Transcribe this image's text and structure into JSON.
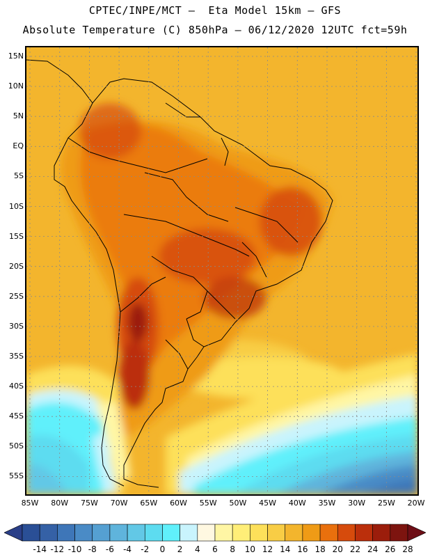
{
  "title_line1": "CPTEC/INPE/MCT –  Eta Model 15km – GFS",
  "title_line2": "Absolute Temperature (C) 850hPa – 06/12/2020 12UTC fct=59h",
  "lat_labels": [
    "15N",
    "10N",
    "5N",
    "EQ",
    "5S",
    "10S",
    "15S",
    "20S",
    "25S",
    "30S",
    "35S",
    "40S",
    "45S",
    "50S",
    "55S"
  ],
  "lon_labels": [
    "85W",
    "80W",
    "75W",
    "70W",
    "65W",
    "60W",
    "55W",
    "50W",
    "45W",
    "40W",
    "35W",
    "30W",
    "25W",
    "20W"
  ],
  "colorbar": {
    "labels": [
      "-14",
      "-12",
      "-10",
      "-8",
      "-6",
      "-4",
      "-2",
      "0",
      "2",
      "4",
      "6",
      "8",
      "10",
      "12",
      "14",
      "16",
      "18",
      "20",
      "22",
      "24",
      "26",
      "28"
    ],
    "colors": [
      "#2a4f96",
      "#3561a6",
      "#3e76b8",
      "#4a8bc6",
      "#55a0d2",
      "#5fb4dc",
      "#62c8e6",
      "#5ddcf0",
      "#60f0fb",
      "#c9f4fd",
      "#fff8e1",
      "#fff6a4",
      "#ffee78",
      "#fde05a",
      "#f8cd45",
      "#f3b52d",
      "#ef9b16",
      "#e9700d",
      "#d64b0c",
      "#bb2f0b",
      "#9b1d0b",
      "#7d140f"
    ],
    "low_arrow_color": "#2a3f88",
    "high_arrow_color": "#6e0e16"
  }
}
